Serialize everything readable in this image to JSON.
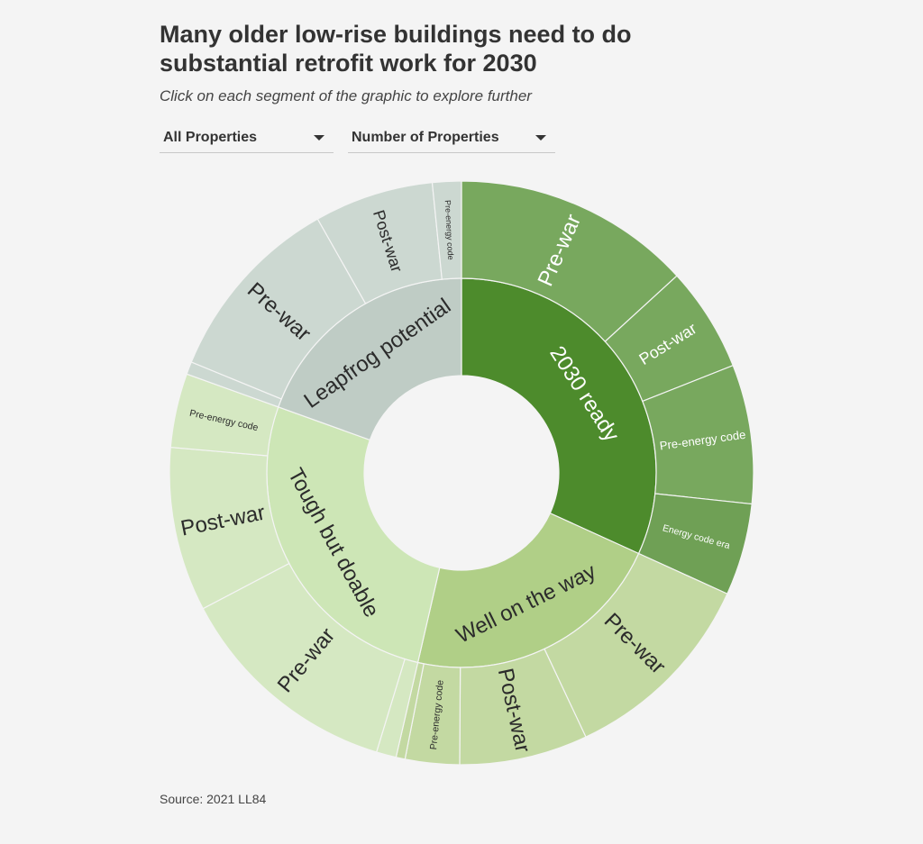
{
  "title": "Many older low-rise buildings need to do substantial retrofit work for 2030",
  "subtitle": "Click on each segment of the graphic to explore further",
  "controls": {
    "property_filter": {
      "selected": "All Properties"
    },
    "metric": {
      "selected": "Number of Properties"
    }
  },
  "source": "Source: 2021 LL84",
  "chart_data": {
    "type": "sunburst",
    "title": "Many older low-rise buildings need to do substantial retrofit work for 2030",
    "groups": [
      {
        "label": "2030 ready",
        "share": 0.318,
        "color": "#4d8b2c",
        "text_color": "#ffffff",
        "children": [
          {
            "label": "Pre-war",
            "share": 0.132,
            "color": "#78a85e",
            "text_color": "#ffffff",
            "label_size": "large"
          },
          {
            "label": "Post-war",
            "share": 0.058,
            "color": "#78a85e",
            "text_color": "#ffffff",
            "label_size": "medium"
          },
          {
            "label": "Pre-energy code",
            "share": 0.077,
            "color": "#78a85e",
            "text_color": "#ffffff",
            "label_size": "small"
          },
          {
            "label": "Energy code era",
            "share": 0.051,
            "color": "#6fa055",
            "text_color": "#ffffff",
            "label_size": "tiny"
          }
        ]
      },
      {
        "label": "Well on the way",
        "share": 0.218,
        "color": "#b0cf87",
        "text_color": "#2b2b2b",
        "children": [
          {
            "label": "Pre-war",
            "share": 0.112,
            "color": "#c3d9a2",
            "text_color": "#2b2b2b",
            "label_size": "large"
          },
          {
            "label": "Post-war",
            "share": 0.071,
            "color": "#c3d9a2",
            "text_color": "#2b2b2b",
            "label_size": "large"
          },
          {
            "label": "Pre-energy code",
            "share": 0.03,
            "color": "#c3d9a2",
            "text_color": "#2b2b2b",
            "label_size": "tiny"
          },
          {
            "label": "",
            "share": 0.005,
            "color": "#c3d9a2",
            "text_color": "#2b2b2b",
            "label_size": "none"
          }
        ]
      },
      {
        "label": "Tough but doable",
        "share": 0.269,
        "color": "#cde6b6",
        "text_color": "#2b2b2b",
        "children": [
          {
            "label": "",
            "share": 0.011,
            "color": "#d5e8c2",
            "text_color": "#2b2b2b",
            "label_size": "none"
          },
          {
            "label": "Pre-war",
            "share": 0.126,
            "color": "#d5e8c2",
            "text_color": "#2b2b2b",
            "label_size": "large"
          },
          {
            "label": "Post-war",
            "share": 0.091,
            "color": "#d5e8c2",
            "text_color": "#2b2b2b",
            "label_size": "large"
          },
          {
            "label": "Pre-energy code",
            "share": 0.041,
            "color": "#d5e8c2",
            "text_color": "#2b2b2b",
            "label_size": "tiny"
          }
        ]
      },
      {
        "label": "Leapfrog potential",
        "share": 0.195,
        "color": "#bfccc5",
        "text_color": "#2b2b2b",
        "children": [
          {
            "label": "",
            "share": 0.007,
            "color": "#ccd8d1",
            "text_color": "#2b2b2b",
            "label_size": "none"
          },
          {
            "label": "Pre-war",
            "share": 0.106,
            "color": "#ccd8d1",
            "text_color": "#2b2b2b",
            "label_size": "large"
          },
          {
            "label": "Post-war",
            "share": 0.066,
            "color": "#ccd8d1",
            "text_color": "#2b2b2b",
            "label_size": "medium"
          },
          {
            "label": "Pre-energy code",
            "share": 0.016,
            "color": "#ccd8d1",
            "text_color": "#2b2b2b",
            "label_size": "micro"
          }
        ]
      }
    ]
  }
}
